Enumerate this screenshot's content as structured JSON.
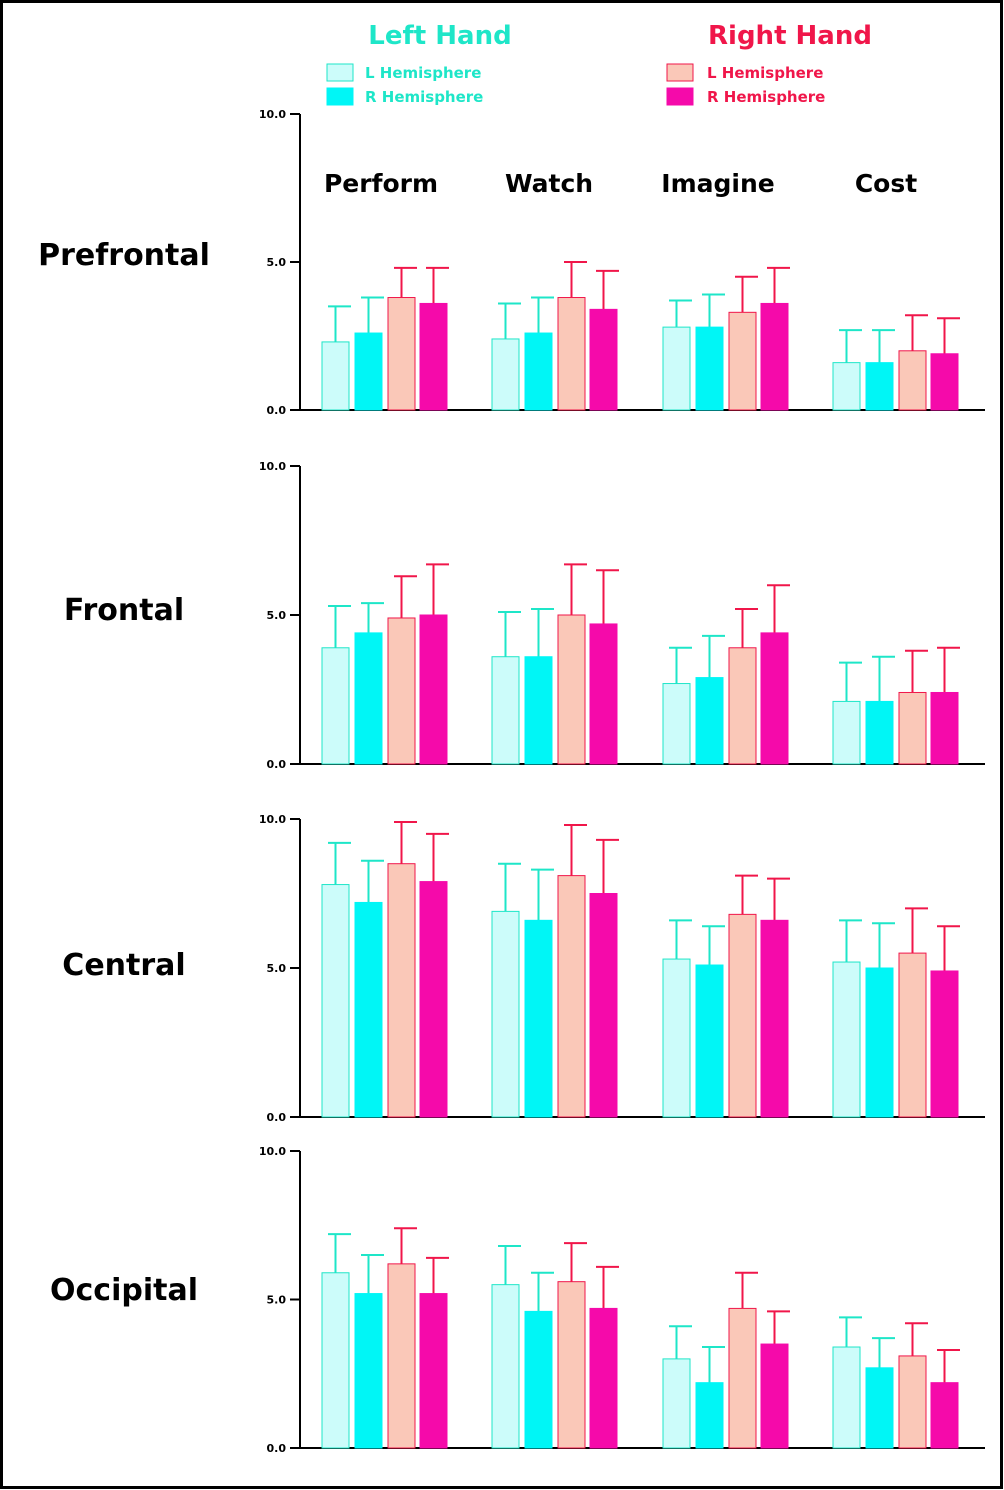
{
  "chart_data": {
    "type": "bar",
    "legend": {
      "placement": "top",
      "groups": [
        {
          "title": "Left Hand",
          "color": "#1ee6c8",
          "entries": [
            {
              "label": "L  Hemisphere",
              "fill": "#ccfcfa",
              "stroke": "#1ee6c8"
            },
            {
              "label": "R  Hemisphere",
              "fill": "#00f6f6",
              "stroke": "#00f6f6"
            }
          ]
        },
        {
          "title": "Right Hand",
          "color": "#f0164a",
          "entries": [
            {
              "label": "L  Hemisphere",
              "fill": "#fac8b8",
              "stroke": "#f0164a"
            },
            {
              "label": "R  Hemisphere",
              "fill": "#f50aaa",
              "stroke": "#f50aaa"
            }
          ]
        }
      ]
    },
    "categories": [
      "Perform",
      "Watch",
      "Imagine",
      "Cost"
    ],
    "series_keys": [
      "left_hand_l_hemisphere",
      "left_hand_r_hemisphere",
      "right_hand_l_hemisphere",
      "right_hand_r_hemisphere"
    ],
    "ylim": [
      0,
      10
    ],
    "yticks": [
      "0.0",
      "5.0",
      "10.0"
    ],
    "grid": false,
    "panels": [
      {
        "name": "Prefrontal",
        "values": [
          [
            2.3,
            2.6,
            3.8,
            3.6
          ],
          [
            2.4,
            2.6,
            3.8,
            3.4
          ],
          [
            2.8,
            2.8,
            3.3,
            3.6
          ],
          [
            1.6,
            1.6,
            2.0,
            1.9
          ]
        ],
        "errors": [
          [
            1.2,
            1.2,
            1.0,
            1.2
          ],
          [
            1.2,
            1.2,
            1.2,
            1.3
          ],
          [
            0.9,
            1.1,
            1.2,
            1.2
          ],
          [
            1.1,
            1.1,
            1.2,
            1.2
          ]
        ]
      },
      {
        "name": "Frontal",
        "values": [
          [
            3.9,
            4.4,
            4.9,
            5.0
          ],
          [
            3.6,
            3.6,
            5.0,
            4.7
          ],
          [
            2.7,
            2.9,
            3.9,
            4.4
          ],
          [
            2.1,
            2.1,
            2.4,
            2.4
          ]
        ],
        "errors": [
          [
            1.4,
            1.0,
            1.4,
            1.7
          ],
          [
            1.5,
            1.6,
            1.7,
            1.8
          ],
          [
            1.2,
            1.4,
            1.3,
            1.6
          ],
          [
            1.3,
            1.5,
            1.4,
            1.5
          ]
        ]
      },
      {
        "name": "Central",
        "values": [
          [
            7.8,
            7.2,
            8.5,
            7.9
          ],
          [
            6.9,
            6.6,
            8.1,
            7.5
          ],
          [
            5.3,
            5.1,
            6.8,
            6.6
          ],
          [
            5.2,
            5.0,
            5.5,
            4.9
          ]
        ],
        "errors": [
          [
            1.4,
            1.4,
            1.4,
            1.6
          ],
          [
            1.6,
            1.7,
            1.7,
            1.8
          ],
          [
            1.3,
            1.3,
            1.3,
            1.4
          ],
          [
            1.4,
            1.5,
            1.5,
            1.5
          ]
        ]
      },
      {
        "name": "Occipital",
        "values": [
          [
            5.9,
            5.2,
            6.2,
            5.2
          ],
          [
            5.5,
            4.6,
            5.6,
            4.7
          ],
          [
            3.0,
            2.2,
            4.7,
            3.5
          ],
          [
            3.4,
            2.7,
            3.1,
            2.2
          ]
        ],
        "errors": [
          [
            1.3,
            1.3,
            1.2,
            1.2
          ],
          [
            1.3,
            1.3,
            1.3,
            1.4
          ],
          [
            1.1,
            1.2,
            1.2,
            1.1
          ],
          [
            1.0,
            1.0,
            1.1,
            1.1
          ]
        ]
      }
    ]
  }
}
